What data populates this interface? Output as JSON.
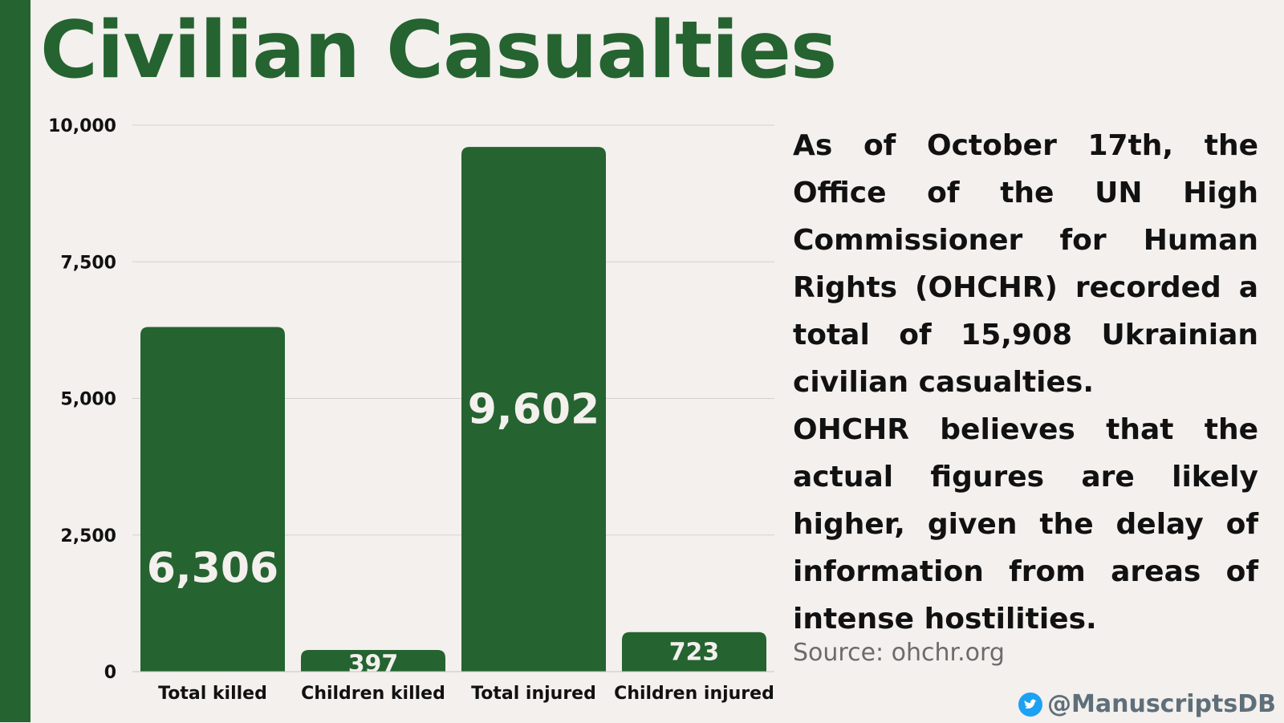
{
  "title": "Civilian Casualties",
  "chart_data": {
    "type": "bar",
    "categories": [
      "Total killed",
      "Children killed",
      "Total injured",
      "Children injured"
    ],
    "values": [
      6306,
      397,
      9602,
      723
    ],
    "value_labels": [
      "6,306",
      "397",
      "9,602",
      "723"
    ],
    "ylim": [
      0,
      10000
    ],
    "yticks": [
      0,
      2500,
      5000,
      7500,
      10000
    ],
    "ytick_labels": [
      "0",
      "2,500",
      "5,000",
      "7,500",
      "10,000"
    ],
    "xlabel": "",
    "ylabel": "",
    "grid": true,
    "bar_color": "#256330",
    "label_color": "#f3f0ed"
  },
  "description": {
    "paragraph1": "As of October 17th, the Office of the UN High Commissioner for Human Rights (OHCHR) recorded a total of 15,908 Ukrainian civilian casualties.",
    "paragraph2": "OHCHR believes that the actual figures are likely higher, given the delay of information from areas of intense hostilities."
  },
  "source": "Source: ohchr.org",
  "social": {
    "handle": "@ManuscriptsDB",
    "icon": "twitter-icon"
  },
  "colors": {
    "accent": "#256330",
    "background": "#f3f0ed"
  }
}
